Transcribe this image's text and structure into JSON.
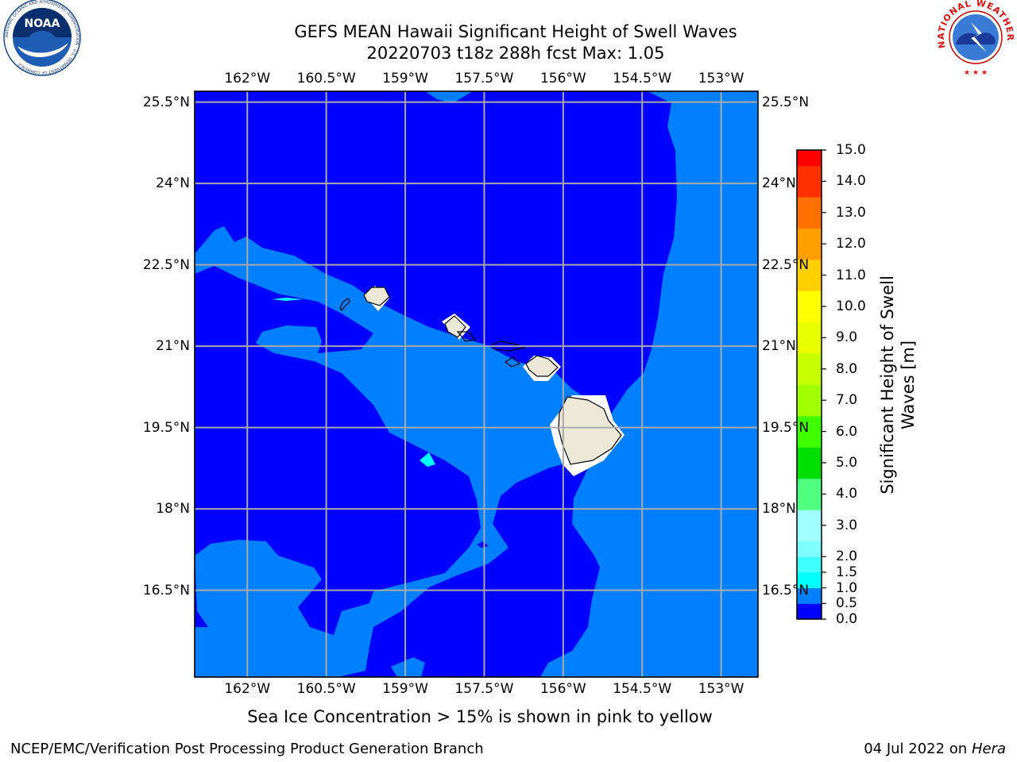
{
  "title": {
    "line1": "GEFS MEAN Hawaii Significant Height of Swell Waves",
    "line2": "20220703 t18z 288h fcst   Max: 1.05"
  },
  "logos": {
    "left": "NOAA",
    "left_ring": "NATIONAL OCEANIC AND ATMOSPHERIC ADMINISTRATION · U.S. DEPARTMENT OF COMMERCE",
    "right_ring": "NATIONAL WEATHER SERVICE"
  },
  "map": {
    "lon_range": [
      -163.0,
      -152.3
    ],
    "lat_range": [
      14.9,
      25.7
    ],
    "lon_ticks": [
      {
        "value": -162,
        "label": "162°W"
      },
      {
        "value": -160.5,
        "label": "160.5°W"
      },
      {
        "value": -159,
        "label": "159°W"
      },
      {
        "value": -157.5,
        "label": "157.5°W"
      },
      {
        "value": -156,
        "label": "156°W"
      },
      {
        "value": -154.5,
        "label": "154.5°W"
      },
      {
        "value": -153,
        "label": "153°W"
      }
    ],
    "lat_ticks": [
      {
        "value": 25.5,
        "label": "25.5°N"
      },
      {
        "value": 24,
        "label": "24°N"
      },
      {
        "value": 22.5,
        "label": "22.5°N"
      },
      {
        "value": 21,
        "label": "21°N"
      },
      {
        "value": 19.5,
        "label": "19.5°N"
      },
      {
        "value": 18,
        "label": "18°N"
      },
      {
        "value": 16.5,
        "label": "16.5°N"
      }
    ],
    "grid": true,
    "colors": {
      "band_0_05": "#0000ff",
      "band_05_10": "#0080ff",
      "band_10_15": "#00ffff",
      "land": "#ece9d8",
      "mask": "#ffffff",
      "grid": "#aaaaaa"
    }
  },
  "colorbar": {
    "title": "Significant Height of Swell Waves [m]",
    "title_line1": "Significant Height of Swell",
    "title_line2": "Waves [m]",
    "levels": [
      0.0,
      0.5,
      1.0,
      1.5,
      2.0,
      2.5,
      3.0,
      3.5,
      4.0,
      4.5,
      5.0,
      5.5,
      6.0,
      6.5,
      7.0,
      7.5,
      8.0,
      8.5,
      9.0,
      9.5,
      10.0,
      10.5,
      11.0,
      11.5,
      12.0,
      12.5,
      13.0,
      13.5,
      14.0,
      14.5,
      15.0
    ],
    "tick_labels": [
      "0.0",
      "0.5",
      "1.0",
      "1.5",
      "2.0",
      "3.0",
      "4.0",
      "5.0",
      "6.0",
      "7.0",
      "8.0",
      "9.0",
      "10.0",
      "11.0",
      "12.0",
      "13.0",
      "14.0",
      "15.0"
    ],
    "colors": [
      "#0000ff",
      "#0080ff",
      "#00ffff",
      "#40ffff",
      "#80ffff",
      "#a0ffff",
      "#a0ffff",
      "#50ff80",
      "#50ff80",
      "#00e000",
      "#00e000",
      "#40ff00",
      "#40ff00",
      "#a0ff00",
      "#a0ff00",
      "#c8ff00",
      "#c8ff00",
      "#e8ff00",
      "#e8ff00",
      "#ffff00",
      "#ffff00",
      "#ffd000",
      "#ffd000",
      "#ffa000",
      "#ffa000",
      "#ff7000",
      "#ff7000",
      "#ff3000",
      "#ff3000",
      "#ff0000"
    ]
  },
  "footer": {
    "note": "Sea Ice Concentration > 15% is shown in pink to yellow",
    "left": "NCEP/EMC/Verification Post Processing Product Generation Branch",
    "right_prefix": "04 Jul 2022 on ",
    "right_host": "Hera"
  }
}
